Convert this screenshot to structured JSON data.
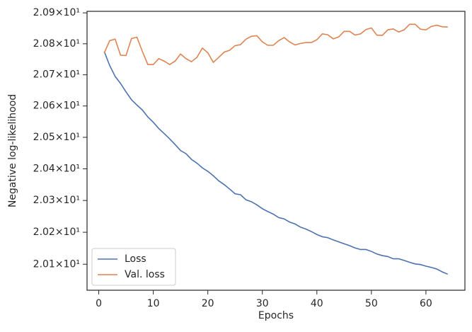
{
  "chart_data": {
    "type": "line",
    "xlabel": "Epochs",
    "ylabel": "Negative log-likelihood",
    "x": [
      1,
      2,
      3,
      4,
      5,
      6,
      7,
      8,
      9,
      10,
      11,
      12,
      13,
      14,
      15,
      16,
      17,
      18,
      19,
      20,
      21,
      22,
      23,
      24,
      25,
      26,
      27,
      28,
      29,
      30,
      31,
      32,
      33,
      34,
      35,
      36,
      37,
      38,
      39,
      40,
      41,
      42,
      43,
      44,
      45,
      46,
      47,
      48,
      49,
      50,
      51,
      52,
      53,
      54,
      55,
      56,
      57,
      58,
      59,
      60,
      61,
      62,
      63,
      64
    ],
    "series": [
      {
        "name": "Loss",
        "color": "#4c72b0",
        "values": [
          20.775,
          20.73,
          20.695,
          20.672,
          20.645,
          20.62,
          20.603,
          20.587,
          20.565,
          20.548,
          20.528,
          20.512,
          20.495,
          20.477,
          20.458,
          20.448,
          20.43,
          20.418,
          20.403,
          20.392,
          20.378,
          20.362,
          20.35,
          20.336,
          20.321,
          20.318,
          20.302,
          20.296,
          20.286,
          20.274,
          20.265,
          20.257,
          20.246,
          20.242,
          20.232,
          20.226,
          20.216,
          20.21,
          20.202,
          20.193,
          20.186,
          20.183,
          20.176,
          20.17,
          20.164,
          20.158,
          20.151,
          20.146,
          20.146,
          20.14,
          20.132,
          20.127,
          20.124,
          20.117,
          20.117,
          20.112,
          20.106,
          20.101,
          20.099,
          20.094,
          20.09,
          20.085,
          20.076,
          20.069
        ]
      },
      {
        "name": "Val. loss",
        "color": "#dd8452",
        "values": [
          20.77,
          20.81,
          20.815,
          20.763,
          20.762,
          20.817,
          20.821,
          20.775,
          20.733,
          20.733,
          20.752,
          20.744,
          20.733,
          20.744,
          20.767,
          20.752,
          20.742,
          20.756,
          20.786,
          20.771,
          20.74,
          20.756,
          20.773,
          20.779,
          20.794,
          20.797,
          20.815,
          20.824,
          20.826,
          20.806,
          20.795,
          20.795,
          20.81,
          20.82,
          20.806,
          20.796,
          20.801,
          20.804,
          20.804,
          20.813,
          20.832,
          20.829,
          20.816,
          20.822,
          20.84,
          20.84,
          20.828,
          20.832,
          20.846,
          20.851,
          20.828,
          20.827,
          20.845,
          20.848,
          20.838,
          20.845,
          20.863,
          20.863,
          20.847,
          20.845,
          20.856,
          20.86,
          20.855,
          20.854
        ]
      }
    ],
    "xlim": [
      -2.15,
      67.15
    ],
    "xticks": [
      0,
      10,
      20,
      30,
      40,
      50,
      60
    ],
    "ylim": [
      20.019,
      20.905
    ],
    "log_y": true,
    "yticks": [
      {
        "value": 20.1,
        "label": "2.01×10¹"
      },
      {
        "value": 20.2,
        "label": "2.02×10¹"
      },
      {
        "value": 20.3,
        "label": "2.03×10¹"
      },
      {
        "value": 20.4,
        "label": "2.04×10¹"
      },
      {
        "value": 20.5,
        "label": "2.05×10¹"
      },
      {
        "value": 20.6,
        "label": "2.06×10¹"
      },
      {
        "value": 20.7,
        "label": "2.07×10¹"
      },
      {
        "value": 20.8,
        "label": "2.08×10¹"
      },
      {
        "value": 20.9,
        "label": "2.09×10¹"
      }
    ],
    "grid": false,
    "legend": "lower left"
  }
}
